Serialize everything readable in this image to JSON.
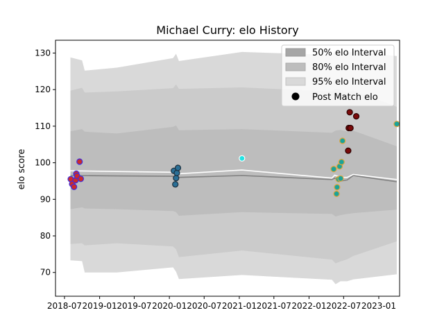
{
  "chart_data": {
    "type": "line",
    "title": "Michael Curry: elo History",
    "xlabel": "",
    "ylabel": "elo score",
    "x_range": [
      "2018-05-15",
      "2023-04-20"
    ],
    "ylim": [
      63.5,
      133.5
    ],
    "x_ticks": [
      {
        "date": "2018-07-01",
        "label": "2018-07"
      },
      {
        "date": "2019-01-01",
        "label": "2019-01"
      },
      {
        "date": "2019-07-01",
        "label": "2019-07"
      },
      {
        "date": "2020-01-01",
        "label": "2020-01"
      },
      {
        "date": "2020-07-01",
        "label": "2020-07"
      },
      {
        "date": "2021-01-01",
        "label": "2021-01"
      },
      {
        "date": "2021-07-01",
        "label": "2021-07"
      },
      {
        "date": "2022-01-01",
        "label": "2022-01"
      },
      {
        "date": "2022-07-01",
        "label": "2022-07"
      },
      {
        "date": "2023-01-01",
        "label": "2023-01"
      }
    ],
    "y_ticks": [
      70,
      80,
      90,
      100,
      110,
      120,
      130
    ],
    "legend": {
      "position": "top-right",
      "entries": [
        {
          "label": "50% elo Interval",
          "kind": "band",
          "color": "#a6a6a6"
        },
        {
          "label": "80% elo Interval",
          "kind": "band",
          "color": "#bdbdbd"
        },
        {
          "label": "95% elo Interval",
          "kind": "band",
          "color": "#d9d9d9"
        },
        {
          "label": "Post Match elo",
          "kind": "marker",
          "color": "#000000"
        }
      ]
    },
    "bands": [
      {
        "name": "95% elo Interval",
        "color": "#d9d9d9",
        "x": [
          "2018-08-01",
          "2018-10-01",
          "2018-10-15",
          "2019-04-01",
          "2020-01-20",
          "2020-02-05",
          "2020-02-20",
          "2021-01-15",
          "2022-05-01",
          "2022-05-20",
          "2022-06-15",
          "2022-07-20",
          "2022-08-20",
          "2023-04-05"
        ],
        "upper": [
          128.8,
          128.0,
          125.2,
          126.0,
          128.6,
          129.8,
          127.8,
          130.3,
          129.5,
          130.6,
          130.4,
          130.1,
          130.4,
          129.2
        ],
        "lower": [
          73.3,
          73.1,
          70.0,
          70.0,
          71.4,
          70.2,
          68.2,
          69.3,
          68.0,
          66.8,
          67.6,
          67.6,
          68.1,
          69.5
        ]
      },
      {
        "name": "80% elo Interval",
        "color": "#cbcbcb",
        "x": [
          "2018-08-01",
          "2018-10-01",
          "2018-10-15",
          "2019-04-01",
          "2020-01-20",
          "2020-02-05",
          "2020-02-20",
          "2021-01-15",
          "2022-05-01",
          "2022-05-20",
          "2022-06-15",
          "2022-07-20",
          "2022-08-20",
          "2023-04-05"
        ],
        "upper": [
          119.7,
          120.5,
          119.2,
          119.5,
          120.4,
          121.4,
          120.2,
          120.6,
          119.5,
          120.2,
          120.0,
          119.2,
          119.7,
          115.3
        ],
        "lower": [
          77.8,
          78.0,
          77.4,
          78.0,
          77.1,
          76.3,
          74.2,
          76.0,
          73.5,
          72.5,
          73.0,
          73.6,
          74.5,
          78.5
        ]
      },
      {
        "name": "50% elo Interval",
        "color": "#bdbdbd",
        "x": [
          "2018-08-01",
          "2018-10-01",
          "2018-10-15",
          "2019-04-01",
          "2020-01-20",
          "2020-02-05",
          "2020-02-20",
          "2021-01-15",
          "2022-05-01",
          "2022-05-20",
          "2022-06-15",
          "2022-07-20",
          "2022-08-20",
          "2023-04-05"
        ],
        "upper": [
          108.6,
          109.2,
          108.5,
          108.0,
          109.8,
          110.2,
          108.9,
          109.2,
          108.2,
          108.8,
          109.0,
          108.5,
          108.8,
          104.5
        ],
        "lower": [
          87.3,
          87.8,
          87.5,
          87.3,
          86.8,
          86.5,
          85.5,
          86.5,
          86.0,
          85.3,
          85.7,
          86.0,
          86.2,
          87.2
        ]
      }
    ],
    "lines": [
      {
        "role": "expected",
        "color": "#808080",
        "x": [
          "2018-08-01",
          "2019-04-01",
          "2020-01-20",
          "2020-02-20",
          "2021-01-15",
          "2022-05-01",
          "2022-05-15",
          "2022-06-15",
          "2022-07-20",
          "2022-08-20",
          "2023-04-05"
        ],
        "y": [
          96.5,
          96.4,
          96.3,
          96.0,
          96.5,
          95.4,
          95.8,
          95.0,
          95.3,
          96.5,
          94.8
        ]
      },
      {
        "role": "mean",
        "color": "#ffffff",
        "x": [
          "2018-08-01",
          "2019-04-01",
          "2020-01-20",
          "2020-02-20",
          "2021-01-15",
          "2022-05-01",
          "2022-05-15",
          "2022-06-15",
          "2022-07-20",
          "2022-08-20",
          "2023-04-05"
        ],
        "y": [
          97.8,
          97.6,
          97.4,
          97.0,
          98.0,
          95.8,
          96.6,
          96.0,
          96.0,
          96.8,
          95.4
        ]
      }
    ],
    "points": [
      {
        "x": "2018-08-03",
        "y": 95.5,
        "fill": "#cc2a2a",
        "edge": "#3d2ce0"
      },
      {
        "x": "2018-08-10",
        "y": 94.2,
        "fill": "#cc2a2a",
        "edge": "#3d2ce0"
      },
      {
        "x": "2018-08-20",
        "y": 93.4,
        "fill": "#cc2a2a",
        "edge": "#3d2ce0"
      },
      {
        "x": "2018-08-28",
        "y": 95.2,
        "fill": "#cc2a2a",
        "edge": "#3d2ce0"
      },
      {
        "x": "2018-09-01",
        "y": 97.0,
        "fill": "#cc2a2a",
        "edge": "#3d2ce0"
      },
      {
        "x": "2018-09-05",
        "y": 96.4,
        "fill": "#cc2a2a",
        "edge": "#3d2ce0"
      },
      {
        "x": "2018-09-18",
        "y": 100.3,
        "fill": "#cc2a2a",
        "edge": "#3d2ce0"
      },
      {
        "x": "2018-09-24",
        "y": 95.6,
        "fill": "#cc2a2a",
        "edge": "#3d2ce0"
      },
      {
        "x": "2020-01-25",
        "y": 97.8,
        "fill": "#2a6f96",
        "edge": "#1c2e3c"
      },
      {
        "x": "2020-02-01",
        "y": 94.1,
        "fill": "#2a6f96",
        "edge": "#1c2e3c"
      },
      {
        "x": "2020-02-05",
        "y": 95.8,
        "fill": "#2a6f96",
        "edge": "#1c2e3c"
      },
      {
        "x": "2020-02-09",
        "y": 97.2,
        "fill": "#2a6f96",
        "edge": "#1c2e3c"
      },
      {
        "x": "2020-02-15",
        "y": 98.6,
        "fill": "#2a6f96",
        "edge": "#1c2e3c"
      },
      {
        "x": "2021-01-15",
        "y": 101.2,
        "fill": "#22e3e3",
        "edge": "#ffffff"
      },
      {
        "x": "2022-05-10",
        "y": 98.3,
        "fill": "#1aa39a",
        "edge": "#e0a43a"
      },
      {
        "x": "2022-05-25",
        "y": 91.5,
        "fill": "#1aa39a",
        "edge": "#e0a43a"
      },
      {
        "x": "2022-05-28",
        "y": 93.3,
        "fill": "#1aa39a",
        "edge": "#e0a43a"
      },
      {
        "x": "2022-06-05",
        "y": 95.5,
        "fill": "#1aa39a",
        "edge": "#e0a43a"
      },
      {
        "x": "2022-06-10",
        "y": 99.0,
        "fill": "#1aa39a",
        "edge": "#e0a43a"
      },
      {
        "x": "2022-06-15",
        "y": 95.7,
        "fill": "#1aa39a",
        "edge": "#e0a43a"
      },
      {
        "x": "2022-06-20",
        "y": 100.2,
        "fill": "#1aa39a",
        "edge": "#e0a43a"
      },
      {
        "x": "2022-06-25",
        "y": 106.0,
        "fill": "#1aa39a",
        "edge": "#e0a43a"
      },
      {
        "x": "2022-07-25",
        "y": 103.3,
        "fill": "#7a0a0a",
        "edge": "#2a0000"
      },
      {
        "x": "2022-07-28",
        "y": 109.5,
        "fill": "#7a0a0a",
        "edge": "#2a0000"
      },
      {
        "x": "2022-08-02",
        "y": 113.8,
        "fill": "#7a0a0a",
        "edge": "#2a0000"
      },
      {
        "x": "2022-08-06",
        "y": 109.5,
        "fill": "#7a0a0a",
        "edge": "#2a0000"
      },
      {
        "x": "2022-09-05",
        "y": 112.7,
        "fill": "#7a0a0a",
        "edge": "#2a0000"
      },
      {
        "x": "2023-04-05",
        "y": 110.6,
        "fill": "#1aa39a",
        "edge": "#e0a43a"
      }
    ]
  }
}
